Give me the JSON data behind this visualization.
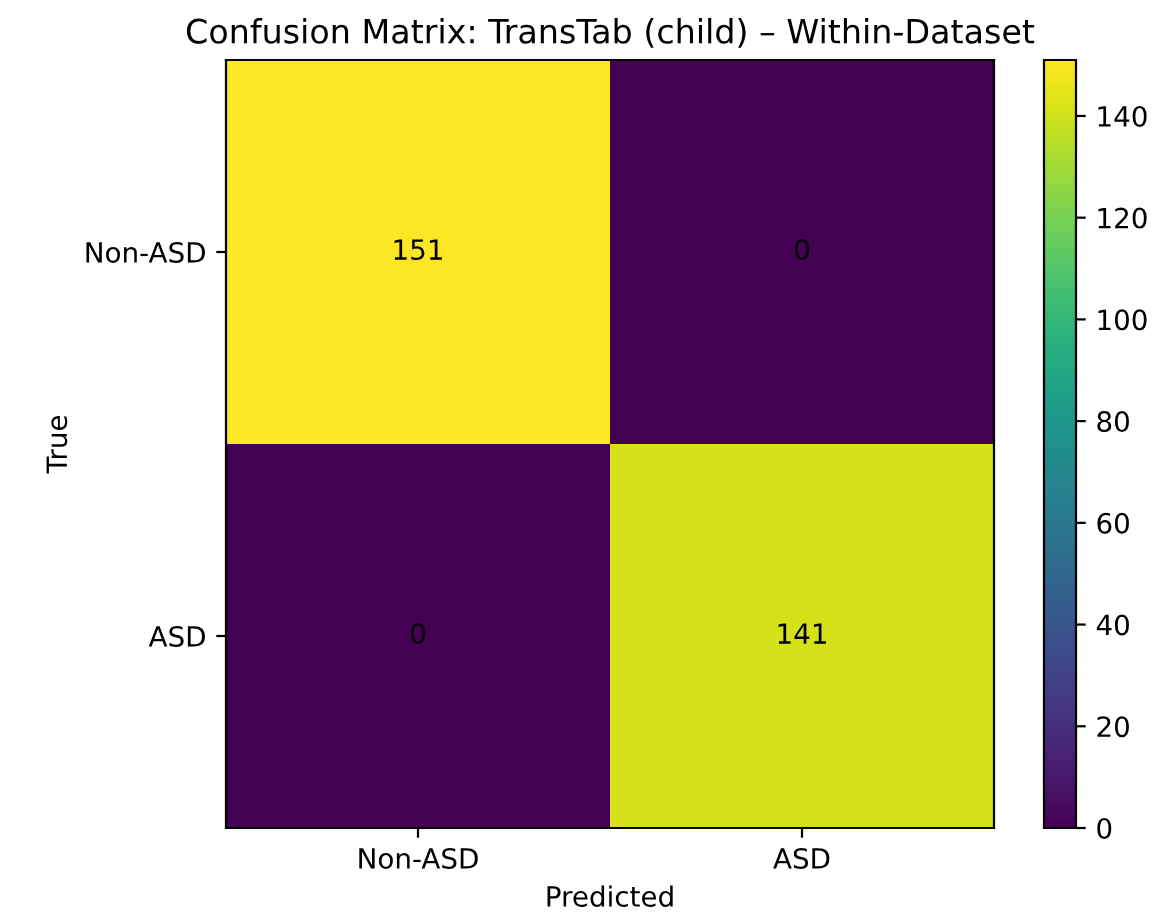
{
  "chart_data": {
    "type": "heatmap",
    "title": "Confusion Matrix: TransTab (child) – Within-Dataset",
    "xlabel": "Predicted",
    "ylabel": "True",
    "categories": [
      "Non-ASD",
      "ASD"
    ],
    "y_categories": [
      "Non-ASD",
      "ASD"
    ],
    "cells": [
      [
        151,
        0
      ],
      [
        0,
        141
      ]
    ],
    "data_labels": true,
    "clim": [
      0,
      151
    ],
    "cticks": [
      0,
      20,
      40,
      60,
      80,
      100,
      120,
      140
    ]
  }
}
